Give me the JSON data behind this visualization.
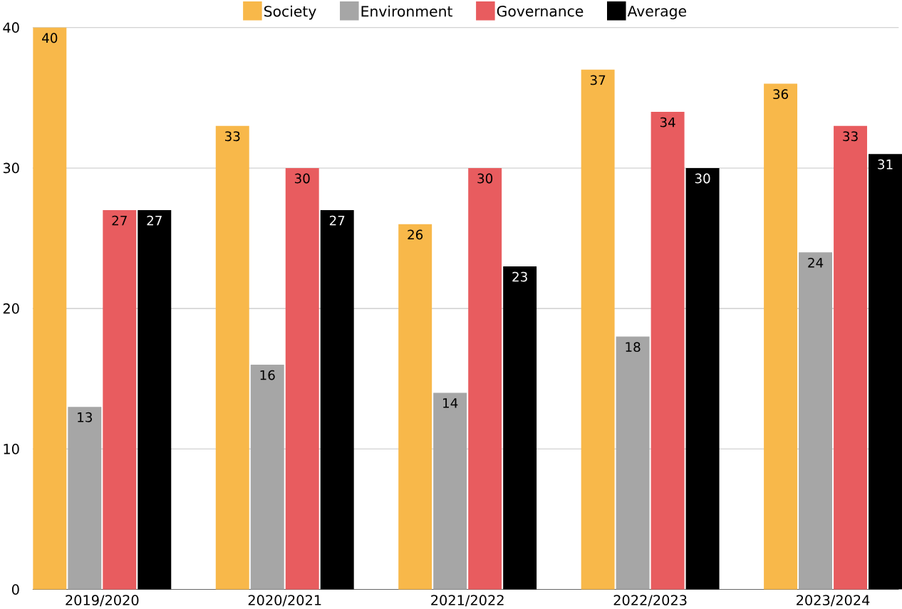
{
  "chart_data": {
    "type": "bar",
    "categories": [
      "2019/2020",
      "2020/2021",
      "2021/2022",
      "2022/2023",
      "2023/2024"
    ],
    "series": [
      {
        "name": "Society",
        "color": "#f8b84a",
        "values": [
          40,
          33,
          26,
          37,
          36
        ]
      },
      {
        "name": "Environment",
        "color": "#a6a6a6",
        "values": [
          13,
          16,
          14,
          18,
          24
        ]
      },
      {
        "name": "Governance",
        "color": "#e85c5f",
        "values": [
          27,
          30,
          30,
          34,
          33
        ]
      },
      {
        "name": "Average",
        "color": "#000000",
        "values": [
          27,
          27,
          23,
          30,
          31
        ]
      }
    ],
    "ylim": [
      0,
      40
    ],
    "yticks": [
      0,
      10,
      20,
      30,
      40
    ],
    "grid": "y",
    "legend": "top",
    "data_labels": true
  }
}
